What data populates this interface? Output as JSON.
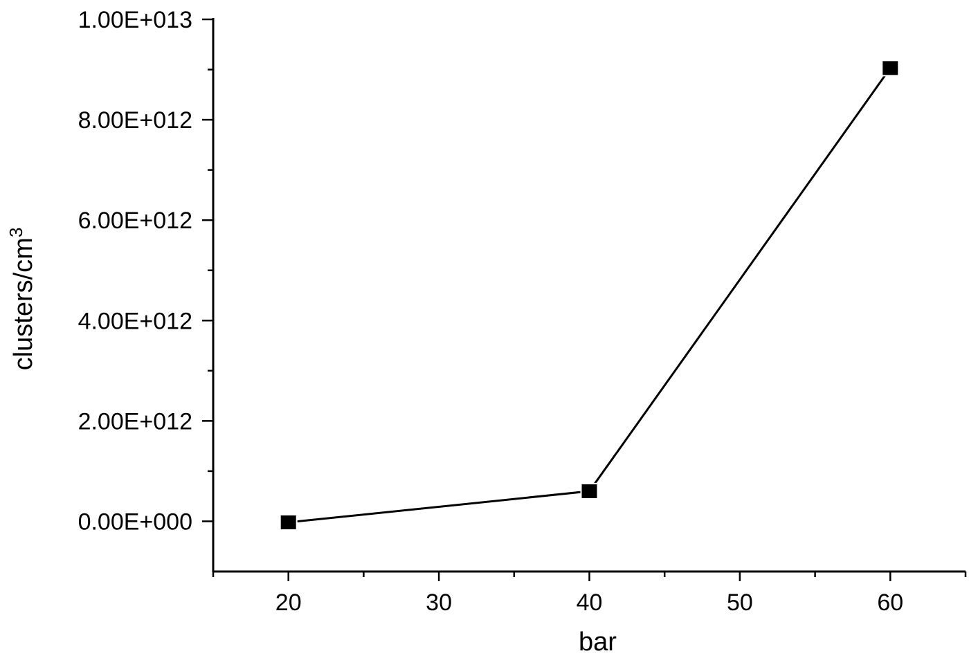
{
  "chart_data": {
    "type": "line",
    "xlabel": "bar",
    "ylabel": "clusters/cm",
    "ylabel_superscript": "3",
    "xlim": [
      15,
      65
    ],
    "ylim": [
      -1000000000000.0,
      10000000000000.0
    ],
    "x_ticks": [
      20,
      30,
      40,
      50,
      60
    ],
    "x_tick_labels": [
      "20",
      "30",
      "40",
      "50",
      "60"
    ],
    "y_ticks": [
      0,
      2000000000000.0,
      4000000000000.0,
      6000000000000.0,
      8000000000000.0,
      10000000000000.0
    ],
    "y_tick_labels": [
      "0.00E+000",
      "2.00E+012",
      "4.00E+012",
      "6.00E+012",
      "8.00E+012",
      "1.00E+013"
    ],
    "grid": false,
    "series": [
      {
        "marker": "square",
        "color": "#000000",
        "x": [
          20,
          40,
          60
        ],
        "values": [
          -20000000000.0,
          600000000000.0,
          9030000000000.0
        ]
      }
    ]
  }
}
